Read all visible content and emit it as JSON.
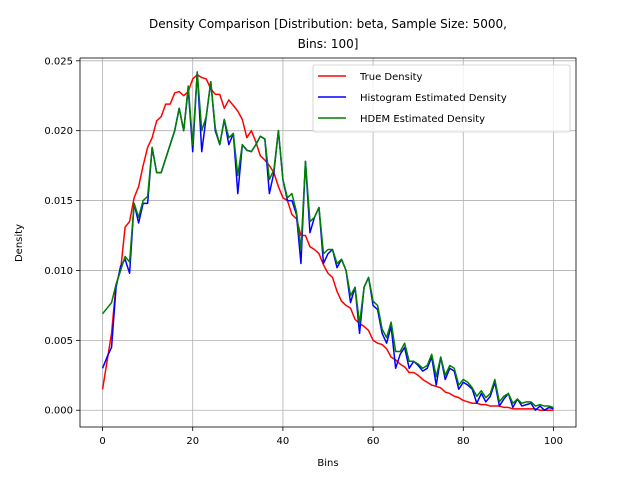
{
  "chart_data": {
    "type": "line",
    "title_lines": [
      "Density Comparison [Distribution: beta, Sample Size: 5000,",
      "Bins: 100]"
    ],
    "xlabel": "Bins",
    "ylabel": "Density",
    "xlim": [
      -5,
      105
    ],
    "ylim": [
      -0.0012,
      0.0252
    ],
    "xticks": [
      0,
      20,
      40,
      60,
      80,
      100
    ],
    "yticks": [
      0.0,
      0.005,
      0.01,
      0.015,
      0.02,
      0.025
    ],
    "ytick_labels": [
      "0.000",
      "0.005",
      "0.010",
      "0.015",
      "0.020",
      "0.025"
    ],
    "grid": true,
    "legend_position": "top-right",
    "series": [
      {
        "name": "True Density",
        "color": "#ff0000",
        "x": [
          0,
          1,
          2,
          3,
          4,
          5,
          6,
          7,
          8,
          9,
          10,
          11,
          12,
          13,
          14,
          15,
          16,
          17,
          18,
          19,
          20,
          21,
          22,
          23,
          24,
          25,
          26,
          27,
          28,
          29,
          30,
          31,
          32,
          33,
          34,
          35,
          36,
          37,
          38,
          39,
          40,
          41,
          42,
          43,
          44,
          45,
          46,
          47,
          48,
          49,
          50,
          51,
          52,
          53,
          54,
          55,
          56,
          57,
          58,
          59,
          60,
          61,
          62,
          63,
          64,
          65,
          66,
          67,
          68,
          69,
          70,
          71,
          72,
          73,
          74,
          75,
          76,
          77,
          78,
          79,
          80,
          81,
          82,
          83,
          84,
          85,
          86,
          87,
          88,
          89,
          90,
          91,
          92,
          93,
          94,
          95,
          96,
          97,
          98,
          99,
          100
        ],
        "y": [
          0.0015,
          0.0035,
          0.0055,
          0.009,
          0.01,
          0.0131,
          0.0135,
          0.0152,
          0.016,
          0.0175,
          0.0188,
          0.0195,
          0.0207,
          0.021,
          0.0219,
          0.0219,
          0.0227,
          0.0228,
          0.0225,
          0.0228,
          0.0237,
          0.024,
          0.0238,
          0.0237,
          0.023,
          0.0226,
          0.0226,
          0.0216,
          0.0222,
          0.0218,
          0.0214,
          0.0208,
          0.0195,
          0.02,
          0.0192,
          0.0182,
          0.0179,
          0.0175,
          0.017,
          0.016,
          0.0152,
          0.015,
          0.014,
          0.0137,
          0.0125,
          0.0125,
          0.0117,
          0.0115,
          0.0112,
          0.0104,
          0.0098,
          0.0095,
          0.0085,
          0.0078,
          0.0075,
          0.0073,
          0.0065,
          0.0062,
          0.006,
          0.0057,
          0.005,
          0.0048,
          0.0047,
          0.0044,
          0.0038,
          0.0036,
          0.0033,
          0.0031,
          0.0027,
          0.0027,
          0.0025,
          0.0022,
          0.002,
          0.0018,
          0.0017,
          0.0016,
          0.0013,
          0.0012,
          0.001,
          0.0009,
          0.0007,
          0.0006,
          0.0005,
          0.0005,
          0.0004,
          0.0004,
          0.0003,
          0.0003,
          0.0003,
          0.0002,
          0.0002,
          0.0001,
          0.0001,
          0.0001,
          0.0001,
          0.0001,
          0.0001,
          0.0,
          0.0,
          0.0,
          0.0
        ]
      },
      {
        "name": "Histogram Estimated Density",
        "color": "#0000ff",
        "x": [
          0,
          1,
          2,
          3,
          4,
          5,
          6,
          7,
          8,
          9,
          10,
          11,
          12,
          13,
          14,
          15,
          16,
          17,
          18,
          19,
          20,
          21,
          22,
          23,
          24,
          25,
          26,
          27,
          28,
          29,
          30,
          31,
          32,
          33,
          34,
          35,
          36,
          37,
          38,
          39,
          40,
          41,
          42,
          43,
          44,
          45,
          46,
          47,
          48,
          49,
          50,
          51,
          52,
          53,
          54,
          55,
          56,
          57,
          58,
          59,
          60,
          61,
          62,
          63,
          64,
          65,
          66,
          67,
          68,
          69,
          70,
          71,
          72,
          73,
          74,
          75,
          76,
          77,
          78,
          79,
          80,
          81,
          82,
          83,
          84,
          85,
          86,
          87,
          88,
          89,
          90,
          91,
          92,
          93,
          94,
          95,
          96,
          97,
          98,
          99,
          100
        ],
        "y": [
          0.003,
          0.0038,
          0.0045,
          0.0088,
          0.0103,
          0.0108,
          0.0098,
          0.0148,
          0.0134,
          0.0148,
          0.0148,
          0.0188,
          0.017,
          0.017,
          0.018,
          0.019,
          0.02,
          0.0216,
          0.02,
          0.023,
          0.0185,
          0.0242,
          0.0185,
          0.021,
          0.0235,
          0.02,
          0.019,
          0.0208,
          0.019,
          0.0198,
          0.0155,
          0.019,
          0.0186,
          0.0185,
          0.019,
          0.0196,
          0.0194,
          0.0155,
          0.017,
          0.02,
          0.0165,
          0.015,
          0.015,
          0.014,
          0.0105,
          0.0178,
          0.0127,
          0.0138,
          0.0145,
          0.0105,
          0.0112,
          0.0115,
          0.0102,
          0.0108,
          0.01,
          0.0077,
          0.0088,
          0.0055,
          0.0088,
          0.0095,
          0.0075,
          0.0072,
          0.0055,
          0.0048,
          0.006,
          0.003,
          0.004,
          0.0045,
          0.003,
          0.0035,
          0.0032,
          0.0028,
          0.003,
          0.0038,
          0.0018,
          0.0038,
          0.0022,
          0.003,
          0.0028,
          0.0015,
          0.002,
          0.0018,
          0.0015,
          0.0005,
          0.0012,
          0.0006,
          0.001,
          0.002,
          0.0003,
          0.0008,
          0.0012,
          0.0002,
          0.0008,
          0.0003,
          0.0004,
          0.0005,
          0.0,
          0.0003,
          0.0,
          0.0002,
          0.0001
        ]
      },
      {
        "name": "HDEM Estimated Density",
        "color": "#008000",
        "x": [
          0,
          1,
          2,
          3,
          4,
          5,
          6,
          7,
          8,
          9,
          10,
          11,
          12,
          13,
          14,
          15,
          16,
          17,
          18,
          19,
          20,
          21,
          22,
          23,
          24,
          25,
          26,
          27,
          28,
          29,
          30,
          31,
          32,
          33,
          34,
          35,
          36,
          37,
          38,
          39,
          40,
          41,
          42,
          43,
          44,
          45,
          46,
          47,
          48,
          49,
          50,
          51,
          52,
          53,
          54,
          55,
          56,
          57,
          58,
          59,
          60,
          61,
          62,
          63,
          64,
          65,
          66,
          67,
          68,
          69,
          70,
          71,
          72,
          73,
          74,
          75,
          76,
          77,
          78,
          79,
          80,
          81,
          82,
          83,
          84,
          85,
          86,
          87,
          88,
          89,
          90,
          91,
          92,
          93,
          94,
          95,
          96,
          97,
          98,
          99,
          100
        ],
        "y": [
          0.0069,
          0.0073,
          0.0077,
          0.009,
          0.01,
          0.011,
          0.0106,
          0.0148,
          0.0138,
          0.015,
          0.0153,
          0.0188,
          0.017,
          0.017,
          0.018,
          0.019,
          0.02,
          0.0216,
          0.02,
          0.0232,
          0.019,
          0.0242,
          0.02,
          0.021,
          0.0235,
          0.0202,
          0.019,
          0.0208,
          0.0195,
          0.0198,
          0.0168,
          0.019,
          0.0186,
          0.0185,
          0.019,
          0.0196,
          0.0194,
          0.0165,
          0.0172,
          0.02,
          0.0165,
          0.0152,
          0.0155,
          0.0142,
          0.0115,
          0.0178,
          0.0135,
          0.0138,
          0.0145,
          0.0112,
          0.0115,
          0.0115,
          0.0105,
          0.0108,
          0.01,
          0.0082,
          0.0088,
          0.0062,
          0.0088,
          0.0095,
          0.0078,
          0.0075,
          0.0058,
          0.0052,
          0.0063,
          0.0042,
          0.0042,
          0.0048,
          0.0035,
          0.0035,
          0.0033,
          0.003,
          0.0032,
          0.004,
          0.0024,
          0.0038,
          0.0025,
          0.0032,
          0.003,
          0.0018,
          0.0022,
          0.002,
          0.0016,
          0.001,
          0.0014,
          0.0009,
          0.0012,
          0.0022,
          0.0006,
          0.001,
          0.0012,
          0.0005,
          0.0008,
          0.0005,
          0.0006,
          0.0006,
          0.0003,
          0.0004,
          0.0003,
          0.0003,
          0.0002
        ]
      }
    ]
  }
}
